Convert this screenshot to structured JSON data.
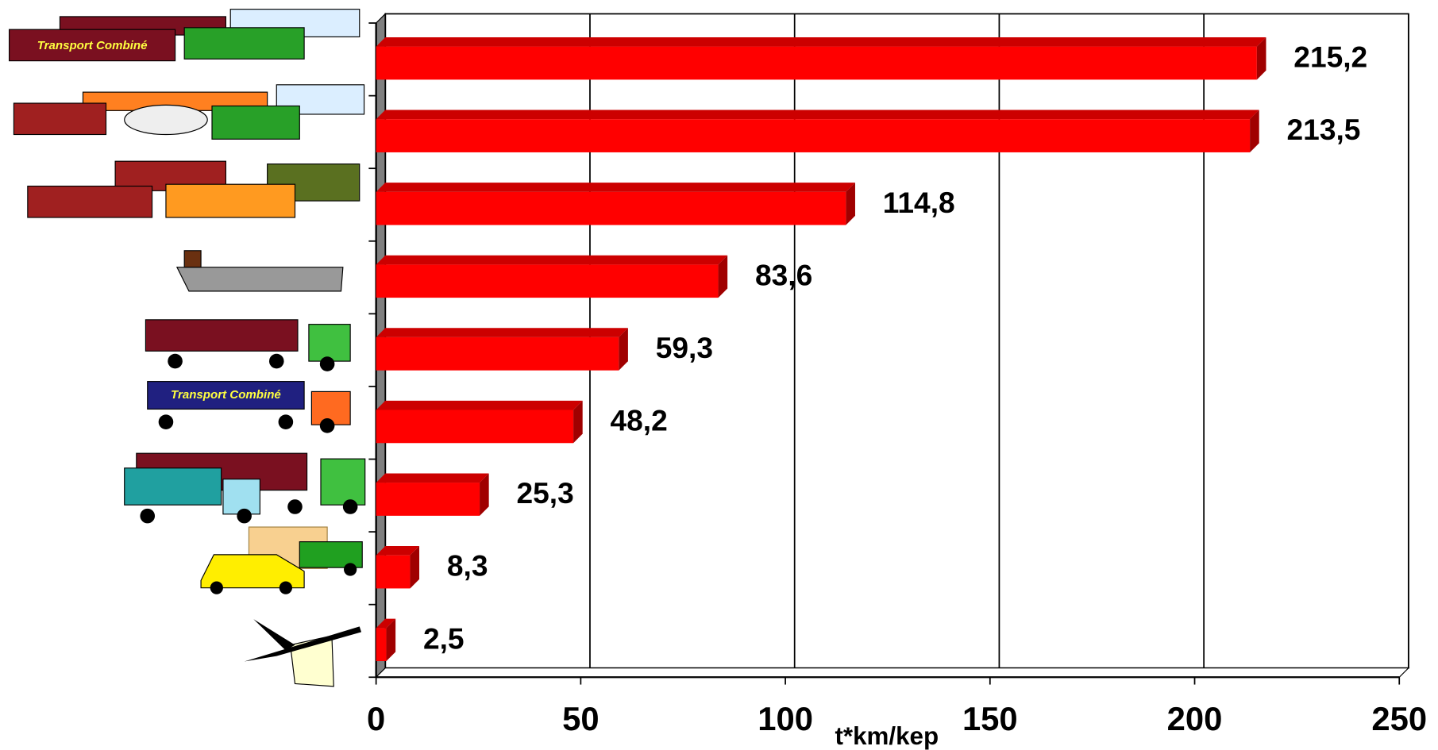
{
  "chart_data": {
    "type": "hbar3d",
    "x_label": "t*km/kep",
    "categories": [
      null,
      null,
      null,
      null,
      null,
      null,
      null,
      null,
      null
    ],
    "values": [
      215.2,
      213.5,
      114.8,
      83.6,
      59.3,
      48.2,
      25.3,
      8.3,
      2.5
    ],
    "value_labels": [
      "215,2",
      "213,5",
      "114,8",
      "83,6",
      "59,3",
      "48,2",
      "25,3",
      "8,3",
      "2,5"
    ],
    "color": "#ff0000",
    "side_color": "#a00000",
    "top_color": "#cc0000",
    "xlim": [
      0,
      250
    ],
    "xticks": [
      0,
      50,
      100,
      150,
      200,
      250
    ],
    "grid": true,
    "icon_labels": [
      "Transport Combiné",
      "Transport Combiné"
    ]
  }
}
